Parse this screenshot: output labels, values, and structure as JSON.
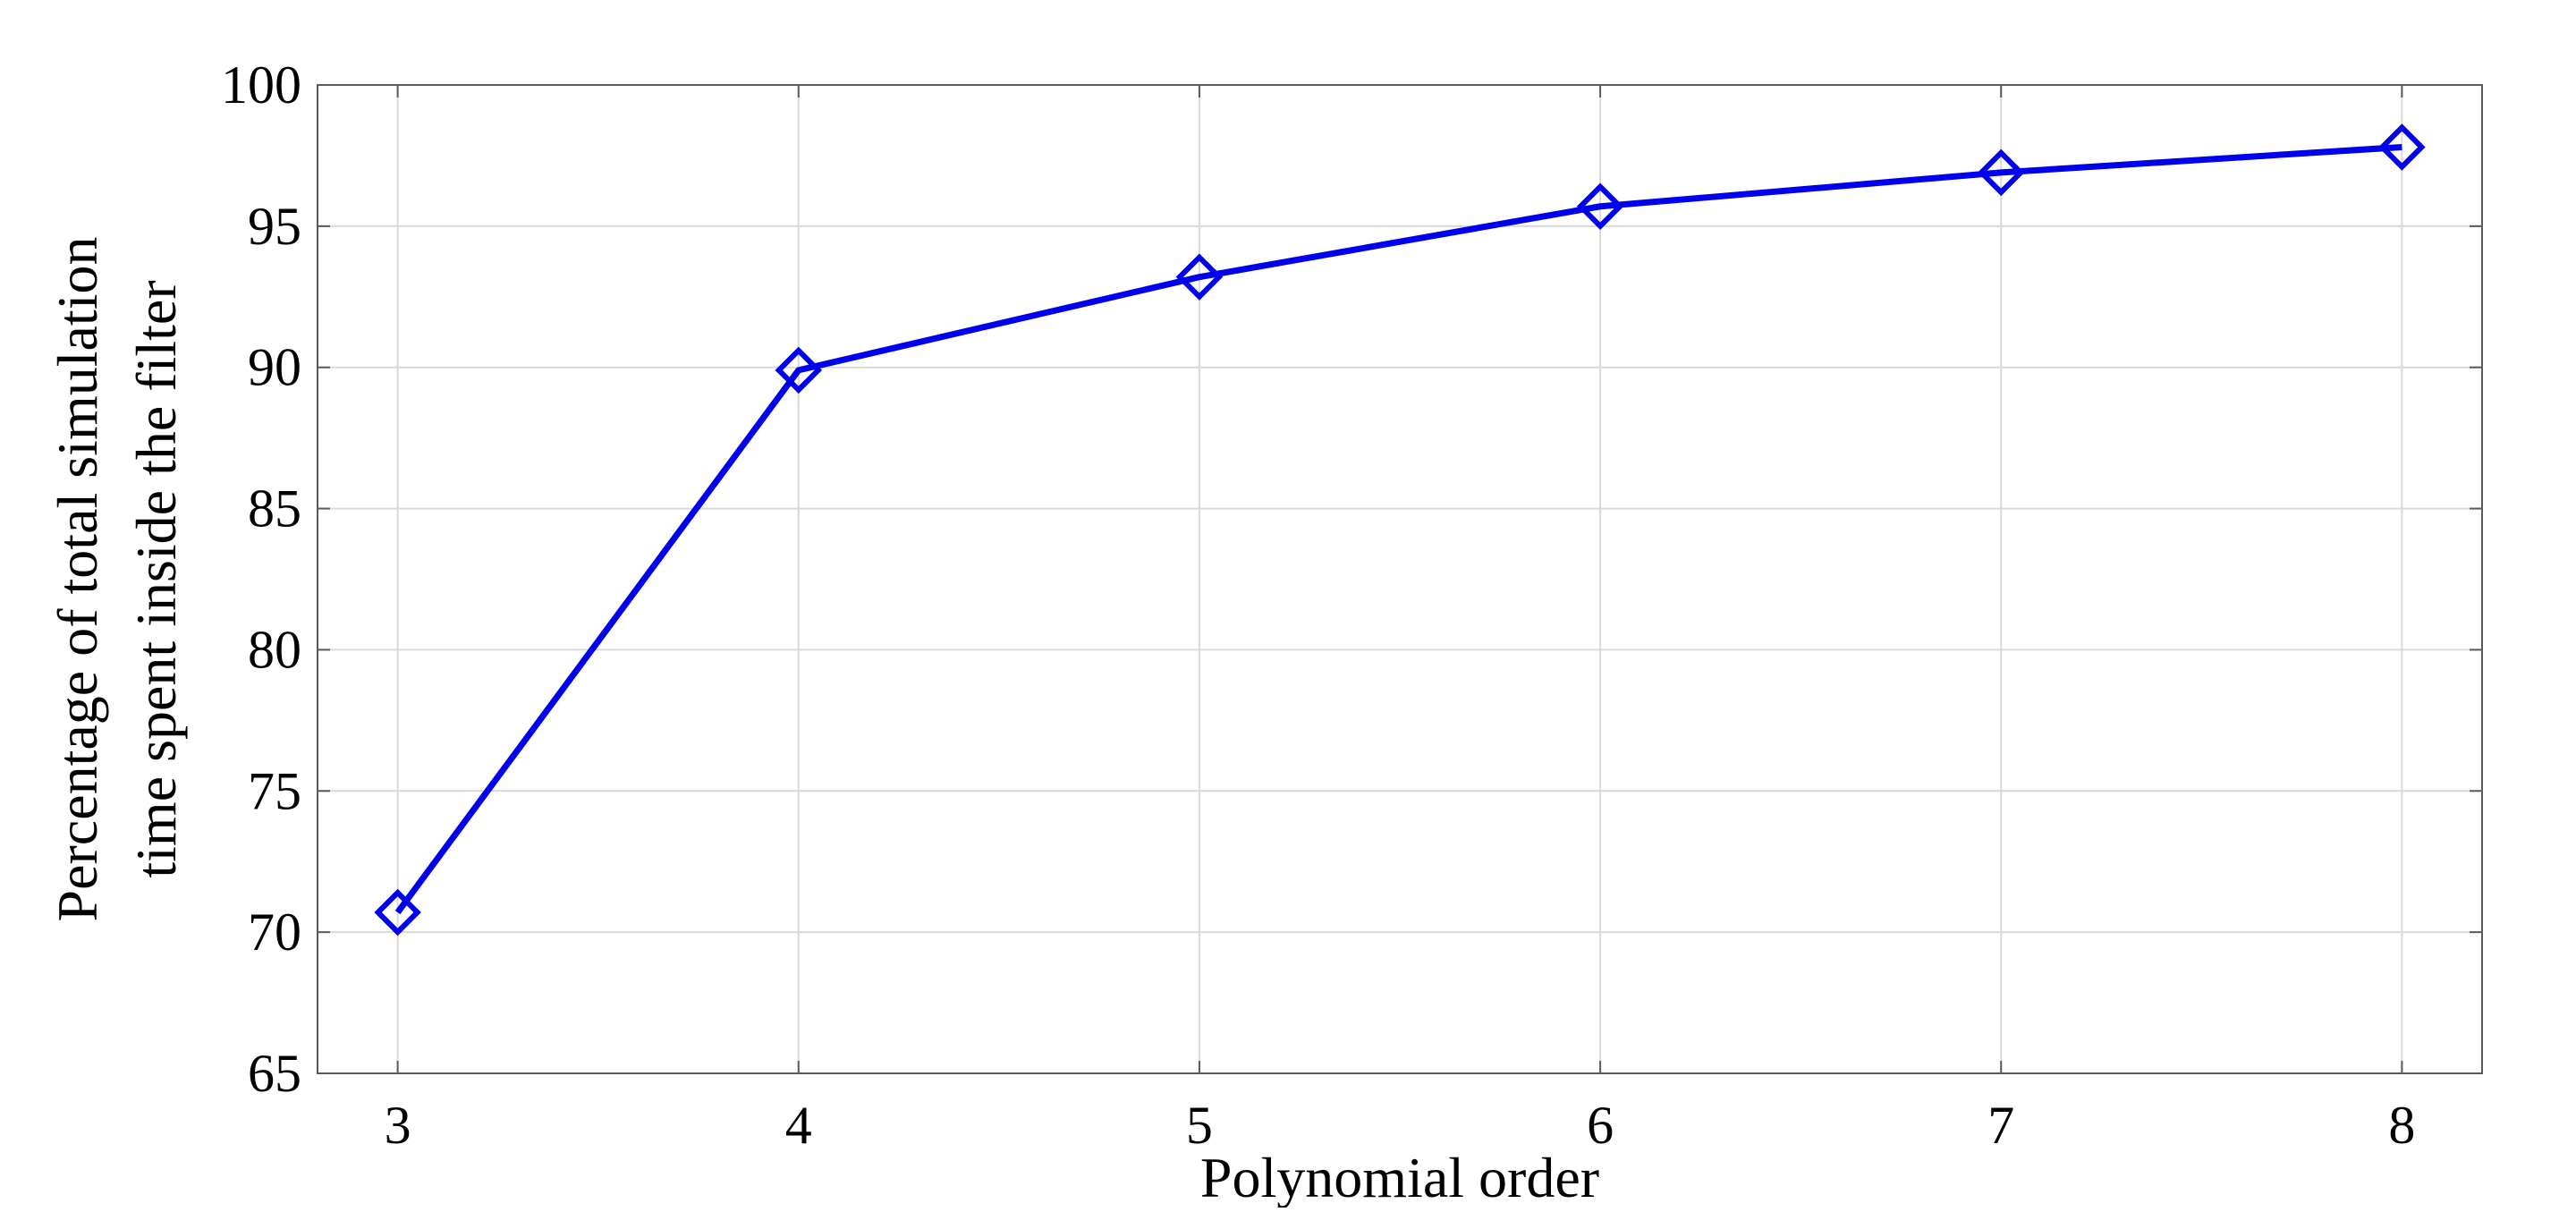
{
  "chart_data": {
    "type": "line",
    "title": "",
    "xlabel": "Polynomial order",
    "ylabel_lines": [
      "Percentage of total simulation",
      "time spent inside the filter"
    ],
    "x": [
      3,
      4,
      5,
      6,
      7,
      8
    ],
    "series": [
      {
        "values": [
          70.7,
          89.9,
          93.2,
          95.7,
          96.9,
          97.8
        ],
        "color": "#0000ee",
        "marker": "diamond"
      }
    ],
    "xlim": [
      2.8,
      8.2
    ],
    "ylim": [
      65,
      100
    ],
    "xticks": [
      "3",
      "4",
      "5",
      "6",
      "7",
      "8"
    ],
    "yticks": [
      "65",
      "70",
      "75",
      "80",
      "85",
      "90",
      "95",
      "100"
    ],
    "grid": true
  }
}
